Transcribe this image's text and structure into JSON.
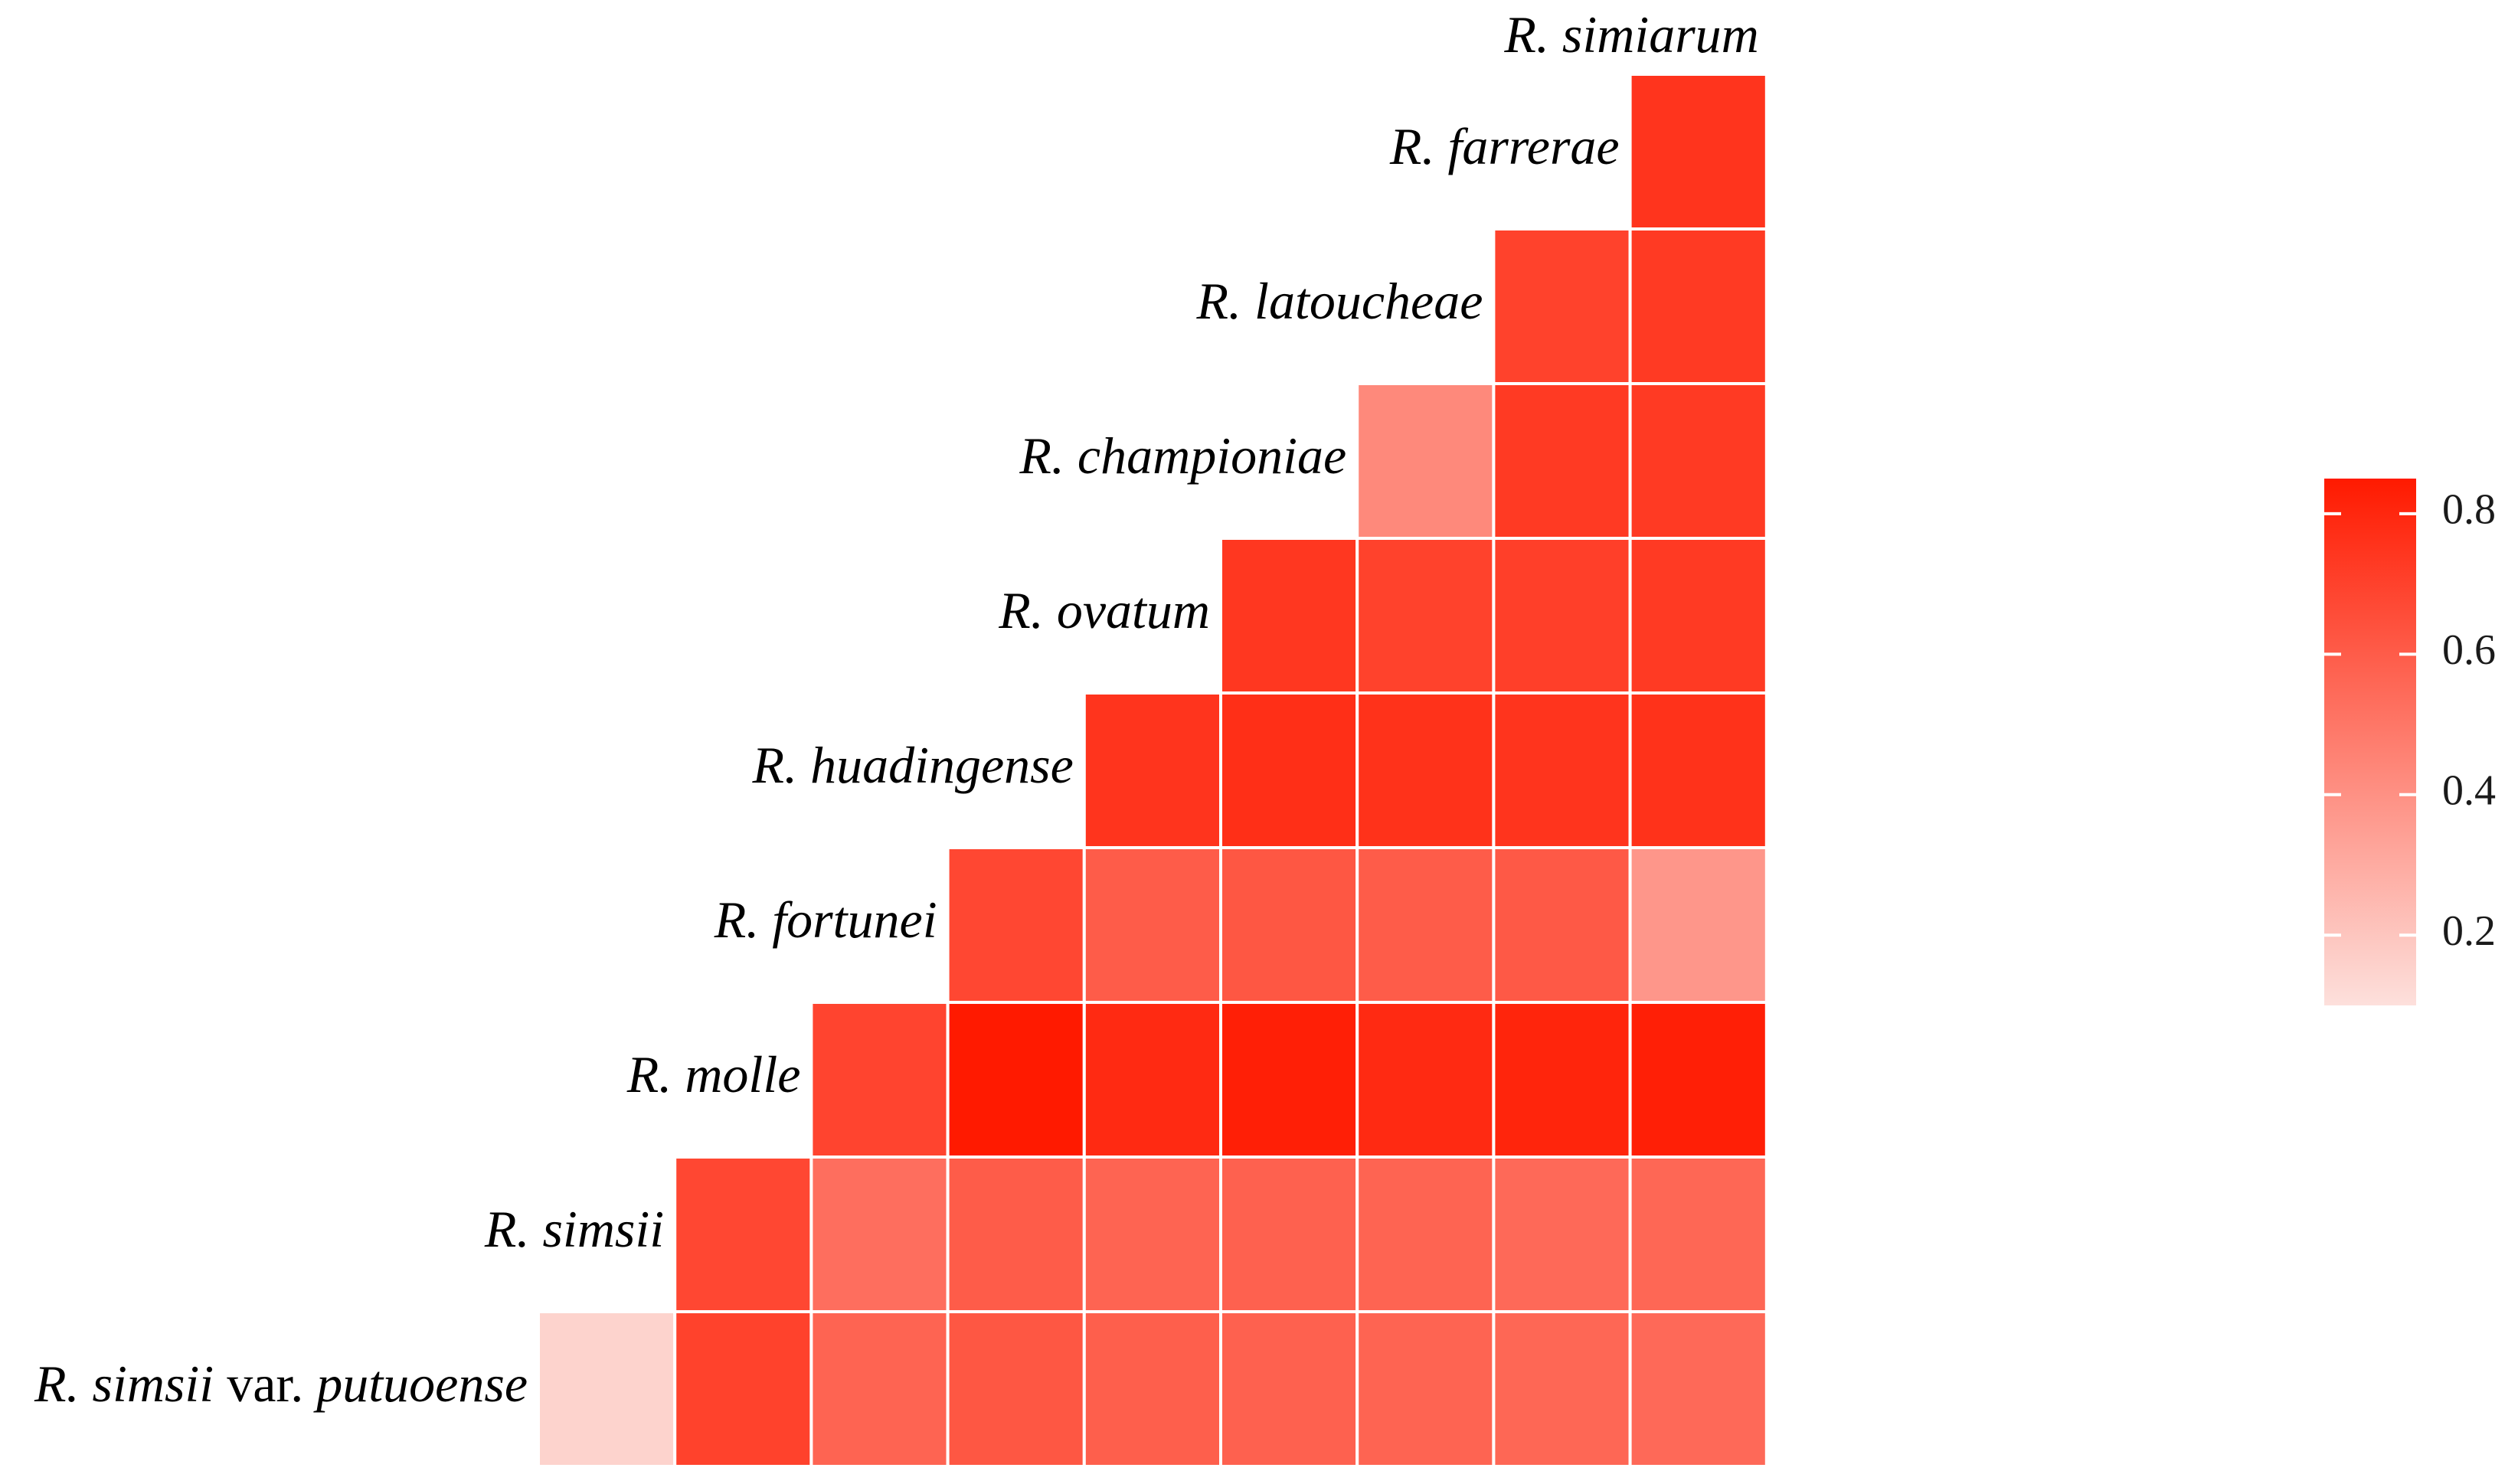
{
  "chart_data": {
    "type": "heatmap",
    "title": "",
    "species": [
      {
        "genus": "R.",
        "epithet": "simsii",
        "suffix": " var. putuoense"
      },
      {
        "genus": "R.",
        "epithet": "simsii",
        "suffix": ""
      },
      {
        "genus": "R.",
        "epithet": "molle",
        "suffix": ""
      },
      {
        "genus": "R.",
        "epithet": "fortunei",
        "suffix": ""
      },
      {
        "genus": "R.",
        "epithet": "huadingense",
        "suffix": ""
      },
      {
        "genus": "R.",
        "epithet": "ovatum",
        "suffix": ""
      },
      {
        "genus": "R.",
        "epithet": "championiae",
        "suffix": ""
      },
      {
        "genus": "R.",
        "epithet": "latoucheae",
        "suffix": ""
      },
      {
        "genus": "R.",
        "epithet": "farrerae",
        "suffix": ""
      },
      {
        "genus": "R.",
        "epithet": "simiarum",
        "suffix": ""
      }
    ],
    "matrix_rows": [
      [
        0.15,
        0.7,
        0.57,
        0.62,
        0.59,
        0.58,
        0.57,
        0.56,
        0.55
      ],
      [
        0.68,
        0.53,
        0.6,
        0.57,
        0.58,
        0.57,
        0.55,
        0.56
      ],
      [
        0.69,
        0.86,
        0.79,
        0.83,
        0.79,
        0.81,
        0.83
      ],
      [
        0.68,
        0.6,
        0.62,
        0.6,
        0.61,
        0.38
      ],
      [
        0.75,
        0.77,
        0.76,
        0.75,
        0.76
      ],
      [
        0.74,
        0.7,
        0.71,
        0.73
      ],
      [
        0.43,
        0.73,
        0.73
      ],
      [
        0.7,
        0.73
      ],
      [
        0.75
      ]
    ],
    "legend": {
      "position": "right",
      "range": [
        0.1,
        0.85
      ],
      "ticks": [
        0.2,
        0.4,
        0.6,
        0.8
      ],
      "tick_labels": [
        "0.2",
        "0.4",
        "0.6",
        "0.8"
      ],
      "color_low": "#fde0dc",
      "color_high": "#ff1a00"
    },
    "grid": false
  }
}
